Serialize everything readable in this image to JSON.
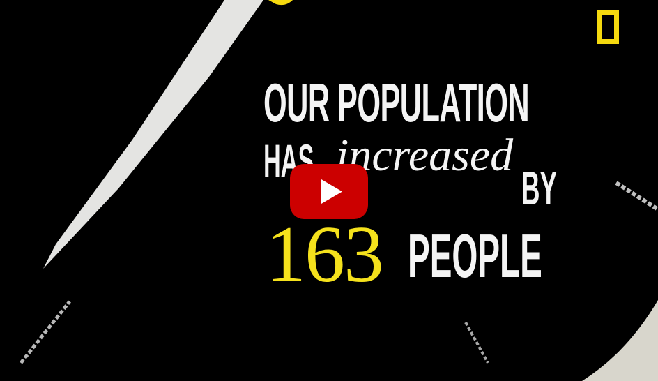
{
  "video": {
    "headline": {
      "line1": "OUR POPULATION",
      "line2_caps": "HAS",
      "line2_italic": "increased",
      "line3": "BY",
      "number": "163",
      "line4": "PEOPLE"
    },
    "logo": {
      "icon": "national-geographic-yellow-frame-icon",
      "color": "#f5d90f"
    },
    "player": {
      "play_icon": "youtube-play-icon",
      "play_color": "#cc0000"
    },
    "colors": {
      "background": "#000000",
      "text": "#f4f4f4",
      "number": "#f5e11c"
    }
  }
}
